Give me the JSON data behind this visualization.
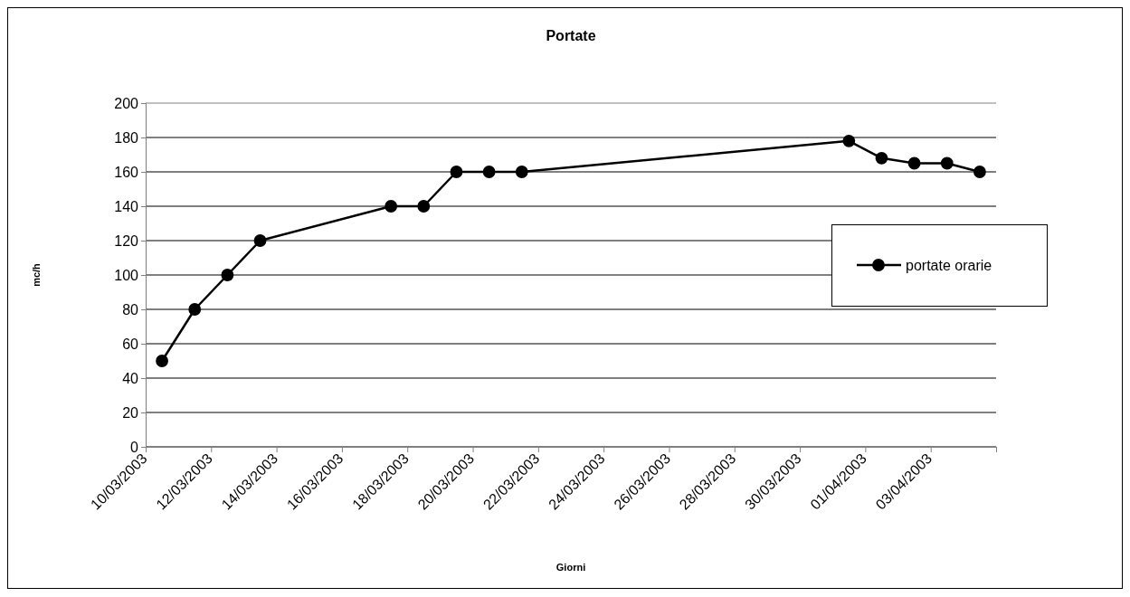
{
  "chart_data": {
    "type": "line",
    "title": "Portate",
    "xlabel": "Giorni",
    "ylabel": "mc/h",
    "x": [
      "2003-03-10T12:00",
      "2003-03-11T12:00",
      "2003-03-12T12:00",
      "2003-03-13T12:00",
      "2003-03-17T12:00",
      "2003-03-18T12:00",
      "2003-03-19T12:00",
      "2003-03-20T12:00",
      "2003-03-21T12:00",
      "2003-03-31T12:00",
      "2003-04-01T12:00",
      "2003-04-02T12:00",
      "2003-04-03T12:00",
      "2003-04-04T12:00"
    ],
    "series": [
      {
        "name": "portate orarie",
        "color": "#000000",
        "values": [
          50,
          80,
          100,
          120,
          140,
          140,
          160,
          160,
          160,
          178,
          168,
          165,
          165,
          160
        ]
      }
    ],
    "xlim": [
      "2003-03-10",
      "2003-04-05"
    ],
    "xticks": [
      {
        "value": "2003-03-10",
        "label": "10/03/2003"
      },
      {
        "value": "2003-03-12",
        "label": "12/03/2003"
      },
      {
        "value": "2003-03-14",
        "label": "14/03/2003"
      },
      {
        "value": "2003-03-16",
        "label": "16/03/2003"
      },
      {
        "value": "2003-03-18",
        "label": "18/03/2003"
      },
      {
        "value": "2003-03-20",
        "label": "20/03/2003"
      },
      {
        "value": "2003-03-22",
        "label": "22/03/2003"
      },
      {
        "value": "2003-03-24",
        "label": "24/03/2003"
      },
      {
        "value": "2003-03-26",
        "label": "26/03/2003"
      },
      {
        "value": "2003-03-28",
        "label": "28/03/2003"
      },
      {
        "value": "2003-03-30",
        "label": "30/03/2003"
      },
      {
        "value": "2003-04-01",
        "label": "01/04/2003"
      },
      {
        "value": "2003-04-03",
        "label": "03/04/2003"
      },
      {
        "value": "2003-04-05",
        "label": null
      }
    ],
    "ylim": [
      0,
      200
    ],
    "yticks": [
      0,
      20,
      40,
      60,
      80,
      100,
      120,
      140,
      160,
      180,
      200
    ],
    "grid": "y",
    "legend": "right",
    "marker": "circle",
    "line_style": "solid"
  }
}
